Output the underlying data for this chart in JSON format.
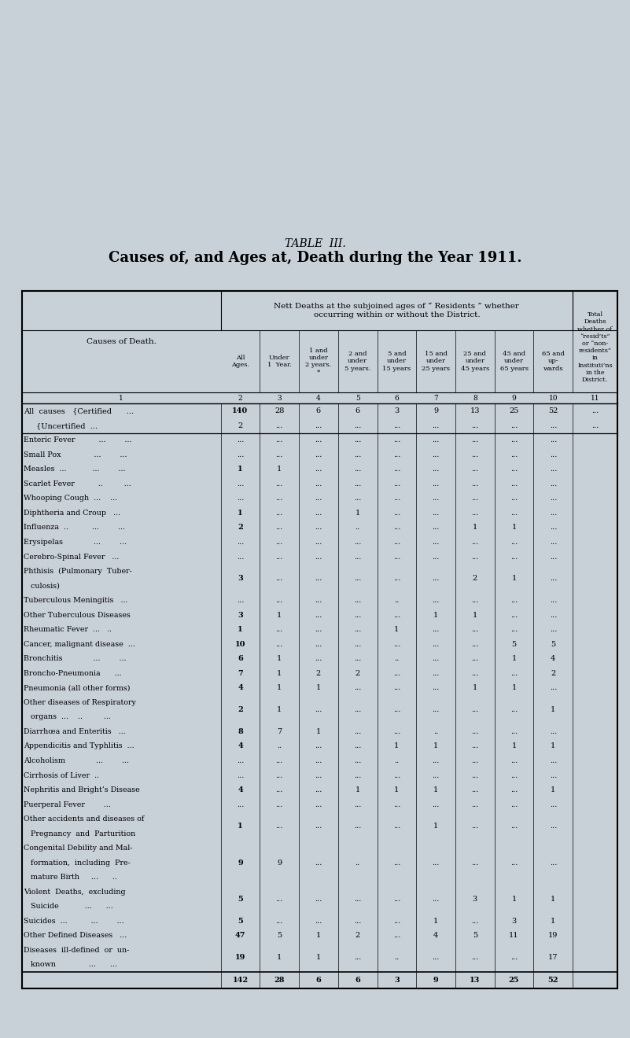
{
  "title_line1": "TABLE  III.",
  "title_line2": "Causes of, and Ages at, Death during the Year 1911.",
  "bg_color": "#c8d0d8",
  "rows": [
    {
      "label": "All causes  {Certified      ...",
      "label2": "              {Uncertified  ...",
      "vals1": [
        "140",
        "28",
        "6",
        "6",
        "3",
        "9",
        "13",
        "25",
        "52",
        "..."
      ],
      "vals2": [
        "2",
        "...",
        "...",
        "...",
        "...",
        "...",
        "...",
        "...",
        "...",
        "..."
      ]
    },
    {
      "label": "Enteric Fever          ...        ...",
      "vals": [
        "...",
        "...",
        "...",
        "...",
        "...",
        "...",
        "...",
        "...",
        "...",
        ""
      ]
    },
    {
      "label": "Small Pox              ...        ...",
      "vals": [
        "...",
        "...",
        "...",
        "...",
        "...",
        "...",
        "...",
        "...",
        "...",
        ""
      ]
    },
    {
      "label": "Measles  ...           ...        ...",
      "vals": [
        "1",
        "1",
        "...",
        "...",
        "...",
        "...",
        "...",
        "...",
        "...",
        ""
      ]
    },
    {
      "label": "Scarlet Fever          ..         ...",
      "vals": [
        "...",
        "...",
        "...",
        "...",
        "...",
        "...",
        "...",
        "...",
        "...",
        ""
      ]
    },
    {
      "label": "Whooping Cough  ...    ...",
      "vals": [
        "...",
        "...",
        "...",
        "...",
        "...",
        "...",
        "...",
        "...",
        "...",
        ""
      ]
    },
    {
      "label": "Diphtheria and Croup   ...",
      "vals": [
        "1",
        "...",
        "...",
        "1",
        "...",
        "...",
        "...",
        "...",
        "...",
        ""
      ]
    },
    {
      "label": "Influenza  ..          ...        ...",
      "vals": [
        "2",
        "...",
        "...",
        "..",
        "...",
        "...",
        "1",
        "1",
        "...",
        ""
      ]
    },
    {
      "label": "Erysipelas             ...        ...",
      "vals": [
        "...",
        "...",
        "...",
        "...",
        "...",
        "...",
        "...",
        "...",
        "...",
        ""
      ]
    },
    {
      "label": "Cerebro-Spinal Fever   ...",
      "vals": [
        "...",
        "...",
        "...",
        "...",
        "...",
        "...",
        "...",
        "...",
        "...",
        ""
      ]
    },
    {
      "label": "Phthisis  (Pulmonary  Tuber-",
      "label2": "   culosis)",
      "vals": [
        "3",
        "...",
        "...",
        "...",
        "...",
        "...",
        "2",
        "1",
        "...",
        ""
      ]
    },
    {
      "label": "Tuberculous Meningitis   ...",
      "vals": [
        "...",
        "...",
        "...",
        "...",
        "..",
        "...",
        "...",
        "...",
        "...",
        ""
      ]
    },
    {
      "label": "Other Tuberculous Diseases",
      "vals": [
        "3",
        "1",
        "...",
        "...",
        "...",
        "1",
        "1",
        "...",
        "...",
        ""
      ]
    },
    {
      "label": "Rheumatic Fever  ...   ..",
      "vals": [
        "1",
        "...",
        "...",
        "...",
        "1",
        "...",
        "...",
        "...",
        "...",
        ""
      ]
    },
    {
      "label": "Cancer, malignant disease  ...",
      "vals": [
        "10",
        "...",
        "...",
        "...",
        "...",
        "...",
        "...",
        "5",
        "5",
        ""
      ]
    },
    {
      "label": "Bronchitis             ...        ...",
      "vals": [
        "6",
        "1",
        "...",
        "...",
        "..",
        "...",
        "...",
        "1",
        "4",
        ""
      ]
    },
    {
      "label": "Broncho-Pneumonia      ...",
      "vals": [
        "7",
        "1",
        "2",
        "2",
        "...",
        "...",
        "...",
        "...",
        "2",
        ""
      ]
    },
    {
      "label": "Pneumonia (all other forms)",
      "vals": [
        "4",
        "1",
        "1",
        "...",
        "...",
        "...",
        "1",
        "1",
        "...",
        ""
      ]
    },
    {
      "label": "Other diseases of Respiratory",
      "label2": "   organs  ...    ..         ...",
      "vals": [
        "2",
        "1",
        "...",
        "...",
        "...",
        "...",
        "...",
        "...",
        "1",
        ""
      ]
    },
    {
      "label": "Diarrhœa and Enteritis   ...",
      "vals": [
        "8",
        "7",
        "1",
        "...",
        "...",
        "..",
        "...",
        "...",
        "...",
        ""
      ]
    },
    {
      "label": "Appendicitis and Typhlitis  ...",
      "vals": [
        "4",
        "..",
        "...",
        "...",
        "1",
        "1",
        "...",
        "1",
        "1",
        ""
      ]
    },
    {
      "label": "Alcoholism             ...        ...",
      "vals": [
        "...",
        "...",
        "...",
        "...",
        "..",
        "...",
        "...",
        "...",
        "...",
        ""
      ]
    },
    {
      "label": "Cirrhosis of Liver  ..",
      "vals": [
        "...",
        "...",
        "...",
        "...",
        "...",
        "...",
        "...",
        "...",
        "...",
        ""
      ]
    },
    {
      "label": "Nephritis and Bright’s Disease",
      "vals": [
        "4",
        "...",
        "...",
        "1",
        "1",
        "1",
        "...",
        "...",
        "1",
        ""
      ]
    },
    {
      "label": "Puerperal Fever        ...",
      "vals": [
        "...",
        "...",
        "...",
        "...",
        "...",
        "...",
        "...",
        "...",
        "...",
        ""
      ]
    },
    {
      "label": "Other accidents and diseases of",
      "label2": "   Pregnancy  and  Parturition",
      "vals": [
        "1",
        "...",
        "...",
        "...",
        "...",
        "1",
        "...",
        "...",
        "...",
        ""
      ]
    },
    {
      "label": "Congenital Debility and Mal-",
      "label2": "   formation,  including  Pre-",
      "label3": "   mature Birth     ...      ..",
      "vals": [
        "9",
        "9",
        "...",
        "..",
        "...",
        "...",
        "...",
        "...",
        "...",
        ""
      ]
    },
    {
      "label": "Violent  Deaths,  excluding",
      "label2": "   Suicide           ...      ...",
      "vals": [
        "5",
        "...",
        "...",
        "...",
        "...",
        "...",
        "3",
        "1",
        "1",
        ""
      ]
    },
    {
      "label": "Suicides  ...          ...        ...",
      "vals": [
        "5",
        "...",
        "...",
        "...",
        "...",
        "1",
        "...",
        "3",
        "1",
        ""
      ]
    },
    {
      "label": "Other Defined Diseases   ...",
      "vals": [
        "47",
        "5",
        "1",
        "2",
        "...",
        "4",
        "5",
        "11",
        "19",
        ""
      ]
    },
    {
      "label": "Diseases  ill-defined  or  un-",
      "label2": "   known              ...      ...",
      "vals": [
        "19",
        "1",
        "1",
        "...",
        "..",
        "...",
        "...",
        "...",
        "17",
        ""
      ]
    }
  ],
  "totals": [
    "142",
    "28",
    "6",
    "6",
    "3",
    "9",
    "13",
    "25",
    "52",
    ""
  ],
  "col_headers": [
    "All\nAges.",
    "Under\n1  Year.",
    "1 and\nunder\n2 years.\n*",
    "2 and\nunder\n5 years.",
    "5 and\nunder\n15 years",
    "15 and\nunder\n25 years",
    "25 and\nunder\n45 years",
    "45 and\nunder\n65 years",
    "65 and\nup-\nwards"
  ]
}
